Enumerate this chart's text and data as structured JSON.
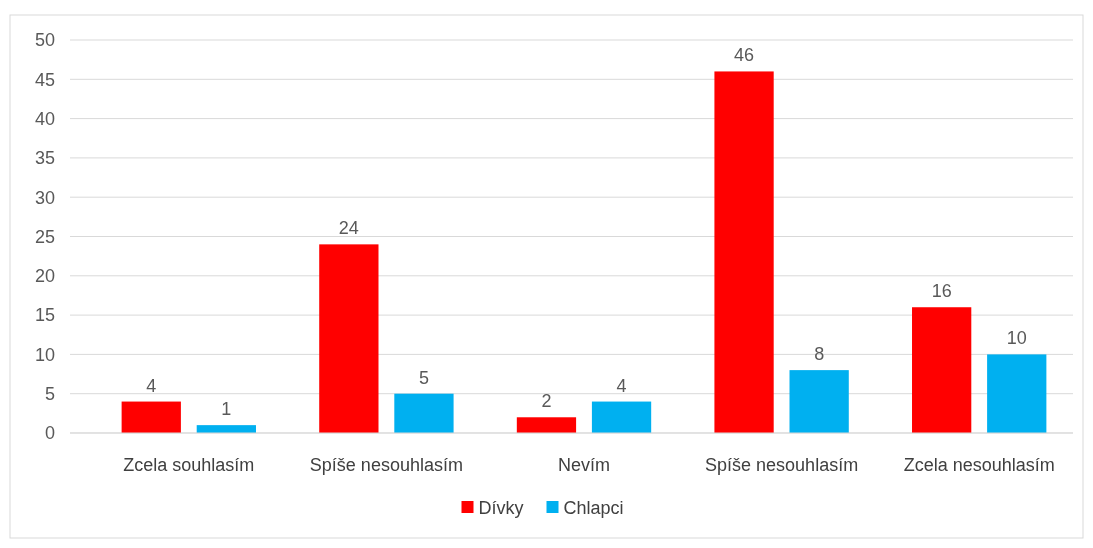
{
  "chart_data": {
    "type": "bar",
    "categories": [
      "Zcela souhlasím",
      "Spíše nesouhlasím",
      "Nevím",
      "Spíše nesouhlasím",
      "Zcela nesouhlasím"
    ],
    "series": [
      {
        "name": "Dívky",
        "color": "#ff0000",
        "values": [
          4,
          24,
          2,
          46,
          16
        ]
      },
      {
        "name": "Chlapci",
        "color": "#00b0f0",
        "values": [
          1,
          5,
          4,
          8,
          10
        ]
      }
    ],
    "ylim": [
      0,
      50
    ],
    "yticks": [
      0,
      5,
      10,
      15,
      20,
      25,
      30,
      35,
      40,
      45,
      50
    ],
    "grid": "y",
    "legend": "bottom",
    "data_labels": true
  }
}
